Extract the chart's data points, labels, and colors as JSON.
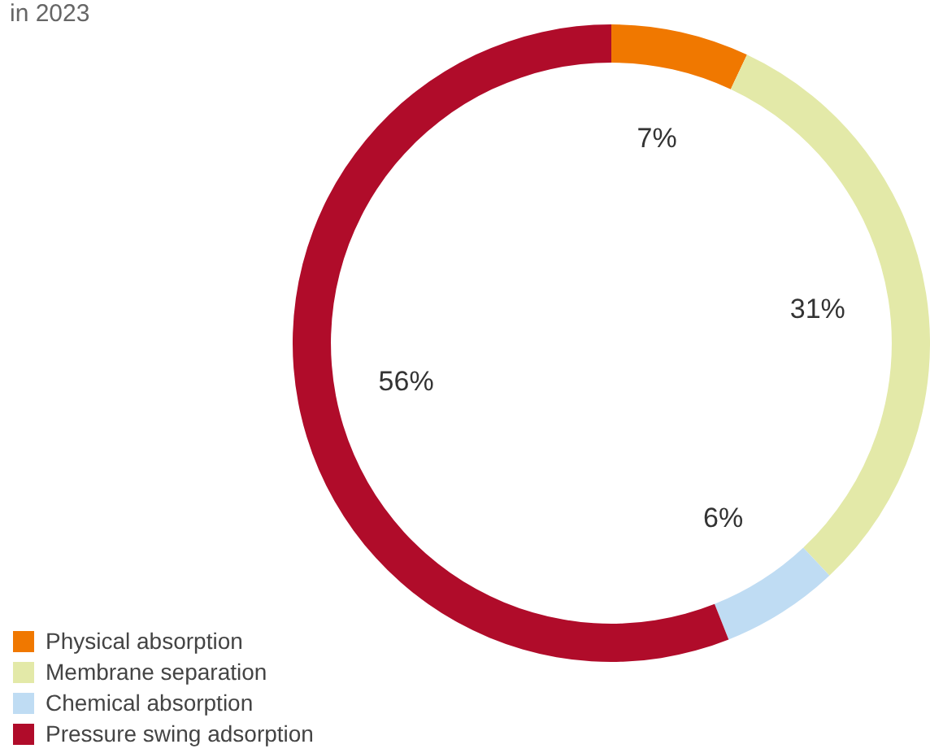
{
  "chart_data": {
    "type": "donut",
    "title": "in 2023",
    "categories": [
      "Physical absorption",
      "Membrane separation",
      "Chemical absorption",
      "Pressure swing adsorption"
    ],
    "values": [
      7,
      31,
      6,
      56
    ],
    "colors": [
      "#f07800",
      "#e3e9a8",
      "#bfdcf3",
      "#b00c2a"
    ],
    "value_labels": [
      "7%",
      "31%",
      "6%",
      "56%"
    ],
    "legend": "bottom left"
  }
}
